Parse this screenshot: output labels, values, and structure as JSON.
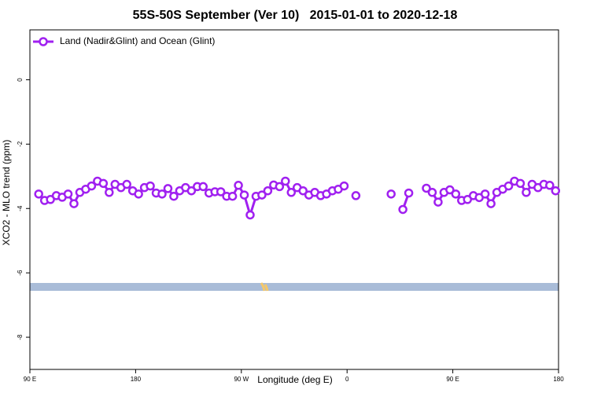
{
  "chart_data": {
    "type": "line",
    "title": "55S-50S September (Ver 10)   2015-01-01 to 2020-12-18",
    "x_label": "Longitude (deg E)",
    "y_label": "XCO2 - MLO trend (ppm)",
    "legend_position": "top-left",
    "xlim": [
      90,
      540
    ],
    "ylim": [
      -9,
      1.55
    ],
    "xticks": [
      {
        "value": 90,
        "label": "90 E"
      },
      {
        "value": 180,
        "label": "180"
      },
      {
        "value": 270,
        "label": "90 W"
      },
      {
        "value": 360,
        "label": "0"
      },
      {
        "value": 450,
        "label": "90 E"
      },
      {
        "value": 540,
        "label": "180"
      }
    ],
    "yticks": [
      0,
      -2,
      -4,
      -6,
      -8
    ],
    "x": [
      97.5,
      102.5,
      107.5,
      112.5,
      117.5,
      122.5,
      127.5,
      132.5,
      137.5,
      142.5,
      147.5,
      152.5,
      157.5,
      162.5,
      167.5,
      172.5,
      177.5,
      182.5,
      187.5,
      192.5,
      197.5,
      202.5,
      207.5,
      212.5,
      217.5,
      222.5,
      227.5,
      232.5,
      237.5,
      242.5,
      247.5,
      252.5,
      257.5,
      262.5,
      267.5,
      272.5,
      277.5,
      282.5,
      287.5,
      292.5,
      297.5,
      302.5,
      307.5,
      312.5,
      317.5,
      322.5,
      327.5,
      332.5,
      337.5,
      342.5,
      347.5,
      352.5,
      357.5,
      362.5,
      367.5,
      372.5,
      377.5,
      382.5,
      387.5,
      392.5,
      397.5,
      402.5,
      407.5,
      412.5,
      417.5,
      422.5,
      427.5,
      432.5,
      437.5,
      442.5,
      447.5,
      452.5,
      457.5,
      462.5,
      467.5,
      472.5,
      477.5,
      482.5,
      487.5,
      492.5,
      497.5,
      502.5,
      507.5,
      512.5,
      517.5,
      522.5,
      527.5,
      532.5,
      537.5
    ],
    "series": [
      {
        "name": "Land (Nadir&Glint) and Ocean (Glint)",
        "color": "#a020f0",
        "values": [
          -3.55,
          -3.75,
          -3.72,
          -3.6,
          -3.65,
          -3.55,
          -3.85,
          -3.5,
          -3.4,
          -3.3,
          -3.15,
          -3.22,
          -3.5,
          -3.25,
          -3.35,
          -3.25,
          -3.45,
          -3.55,
          -3.35,
          -3.3,
          -3.52,
          -3.55,
          -3.38,
          -3.62,
          -3.45,
          -3.35,
          -3.45,
          -3.32,
          -3.32,
          -3.52,
          -3.48,
          -3.48,
          -3.62,
          -3.62,
          -3.28,
          -3.58,
          -4.2,
          -3.62,
          -3.58,
          -3.45,
          -3.27,
          -3.32,
          -3.15,
          -3.5,
          -3.35,
          -3.45,
          -3.58,
          -3.5,
          -3.6,
          -3.55,
          -3.45,
          -3.4,
          -3.3,
          null,
          -3.6,
          null,
          null,
          null,
          null,
          null,
          -3.55,
          null,
          -4.03,
          -3.52,
          null,
          null,
          -3.37,
          -3.5,
          -3.8,
          -3.5,
          -3.42,
          -3.55,
          -3.75,
          -3.72,
          -3.6,
          -3.66,
          -3.55,
          -3.85,
          -3.5,
          -3.4,
          -3.3,
          -3.15,
          -3.22,
          -3.5,
          -3.25,
          -3.35,
          -3.25,
          -3.28,
          -3.45
        ]
      }
    ]
  }
}
